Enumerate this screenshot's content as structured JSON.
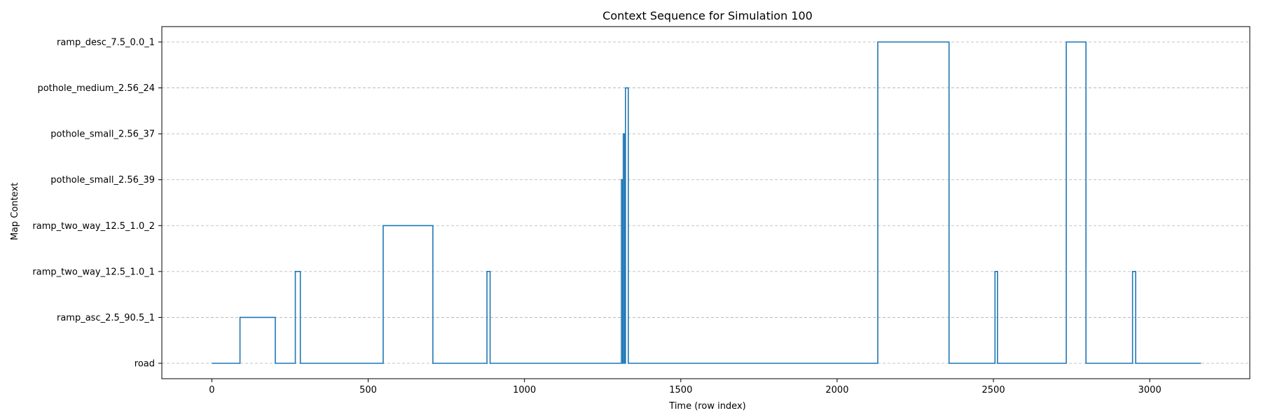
{
  "chart_data": {
    "type": "line",
    "step": true,
    "title": "Context Sequence for Simulation 100",
    "xlabel": "Time (row index)",
    "ylabel": "Map Context",
    "xlim": [
      -160,
      3320
    ],
    "xticks": [
      0,
      500,
      1000,
      1500,
      2000,
      2500,
      3000
    ],
    "categories": [
      "road",
      "ramp_asc_2.5_90.5_1",
      "ramp_two_way_12.5_1.0_1",
      "ramp_two_way_12.5_1.0_2",
      "pothole_small_2.56_39",
      "pothole_small_2.56_37",
      "pothole_medium_2.56_24",
      "ramp_desc_7.5_0.0_1"
    ],
    "grid": "y-dashed",
    "color": "#1f77b4",
    "series": [
      {
        "segments": [
          {
            "start": 0,
            "end": 90,
            "category": "road"
          },
          {
            "start": 90,
            "end": 203,
            "category": "ramp_asc_2.5_90.5_1"
          },
          {
            "start": 203,
            "end": 267,
            "category": "road"
          },
          {
            "start": 267,
            "end": 283,
            "category": "ramp_two_way_12.5_1.0_1"
          },
          {
            "start": 283,
            "end": 548,
            "category": "road"
          },
          {
            "start": 548,
            "end": 707,
            "category": "ramp_two_way_12.5_1.0_2"
          },
          {
            "start": 707,
            "end": 880,
            "category": "road"
          },
          {
            "start": 880,
            "end": 890,
            "category": "ramp_two_way_12.5_1.0_1"
          },
          {
            "start": 890,
            "end": 1310,
            "category": "road"
          },
          {
            "start": 1310,
            "end": 1314,
            "category": "pothole_small_2.56_39"
          },
          {
            "start": 1314,
            "end": 1316,
            "category": "road"
          },
          {
            "start": 1316,
            "end": 1320,
            "category": "pothole_small_2.56_37"
          },
          {
            "start": 1320,
            "end": 1323,
            "category": "road"
          },
          {
            "start": 1323,
            "end": 1332,
            "category": "pothole_medium_2.56_24"
          },
          {
            "start": 1332,
            "end": 2130,
            "category": "road"
          },
          {
            "start": 2130,
            "end": 2358,
            "category": "ramp_desc_7.5_0.0_1"
          },
          {
            "start": 2358,
            "end": 2505,
            "category": "road"
          },
          {
            "start": 2505,
            "end": 2513,
            "category": "ramp_two_way_12.5_1.0_1"
          },
          {
            "start": 2513,
            "end": 2733,
            "category": "road"
          },
          {
            "start": 2733,
            "end": 2796,
            "category": "ramp_desc_7.5_0.0_1"
          },
          {
            "start": 2796,
            "end": 2945,
            "category": "road"
          },
          {
            "start": 2945,
            "end": 2955,
            "category": "ramp_two_way_12.5_1.0_1"
          },
          {
            "start": 2955,
            "end": 3164,
            "category": "road"
          }
        ]
      }
    ]
  }
}
